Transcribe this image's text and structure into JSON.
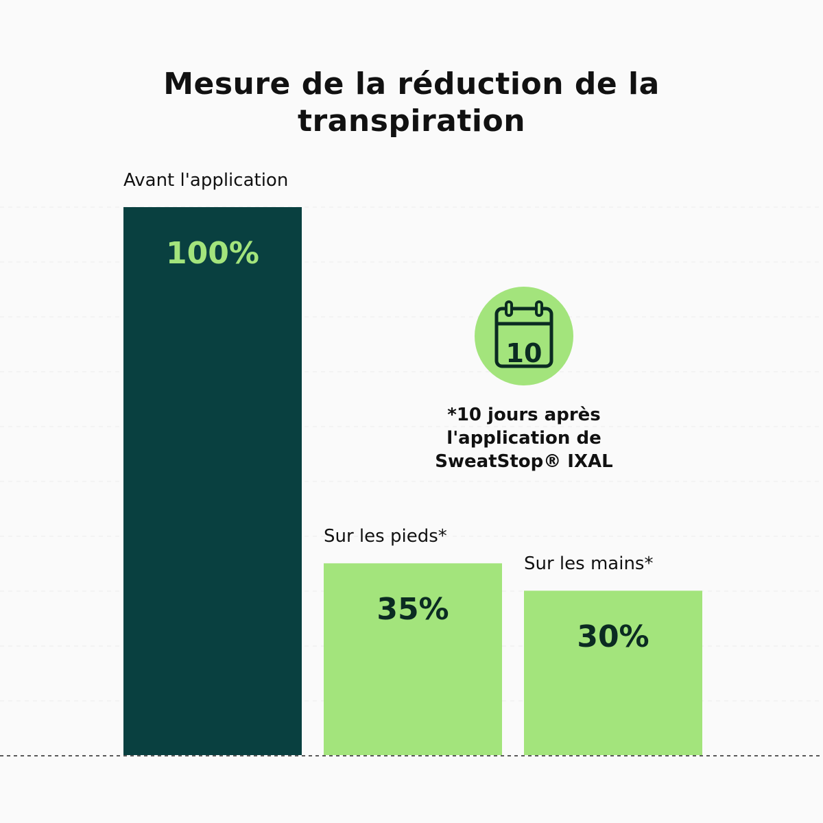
{
  "chart_data": {
    "type": "bar",
    "title": [
      "Mesure de la réduction de la",
      "transpiration"
    ],
    "categories": [
      "Avant l'application",
      "Sur les pieds*",
      "Sur les mains*"
    ],
    "values": [
      100,
      35,
      30
    ],
    "value_labels": [
      "100%",
      "35%",
      "30%"
    ],
    "colors": [
      "#094040",
      "#a3e47c",
      "#a3e47c"
    ],
    "value_label_colors": [
      "#a3e47c",
      "#0b2b22",
      "#0b2b22"
    ],
    "ylim": [
      0,
      100
    ],
    "grid": true,
    "baseline_style": "dashed"
  },
  "badge": {
    "icon": "calendar-icon",
    "day": "10",
    "color": "#a3e47c"
  },
  "footnote": {
    "lines": [
      "*10 jours après",
      "l'application de",
      "SweatStop® IXAL"
    ]
  }
}
